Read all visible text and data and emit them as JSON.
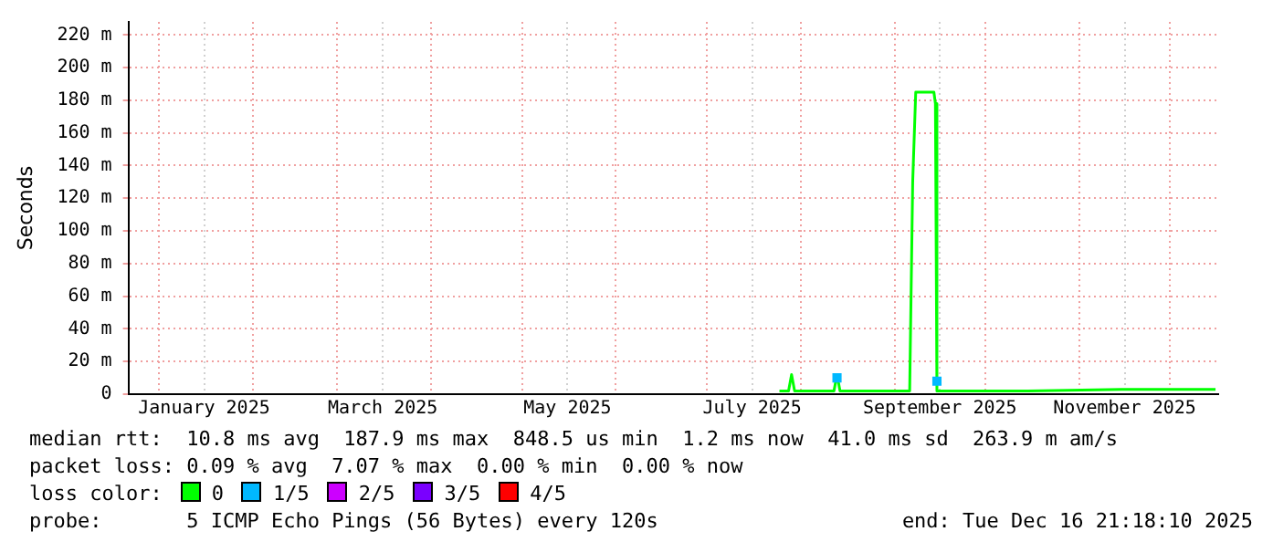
{
  "chart_data": {
    "type": "line",
    "ylabel": "Seconds",
    "legend_title": "loss color:",
    "legend": "bottom",
    "grid": true,
    "xlim": [
      "2024-12-22",
      "2025-12-16T21:18"
    ],
    "xticks": [
      {
        "value": "2025-01-01",
        "label": null
      },
      {
        "value": "2025-01-16",
        "label": "January 2025"
      },
      {
        "value": "2025-02-01",
        "label": null
      },
      {
        "value": "2025-03-01",
        "label": null
      },
      {
        "value": "2025-03-16",
        "label": "March 2025"
      },
      {
        "value": "2025-04-01",
        "label": null
      },
      {
        "value": "2025-05-01",
        "label": null
      },
      {
        "value": "2025-05-16",
        "label": "May 2025"
      },
      {
        "value": "2025-06-01",
        "label": null
      },
      {
        "value": "2025-07-01",
        "label": null
      },
      {
        "value": "2025-07-16",
        "label": "July 2025"
      },
      {
        "value": "2025-08-01",
        "label": null
      },
      {
        "value": "2025-09-01",
        "label": null
      },
      {
        "value": "2025-09-16",
        "label": "September 2025"
      },
      {
        "value": "2025-10-01",
        "label": null
      },
      {
        "value": "2025-11-01",
        "label": null
      },
      {
        "value": "2025-11-16",
        "label": "November 2025"
      },
      {
        "value": "2025-12-01",
        "label": null
      }
    ],
    "ylim": [
      0,
      228
    ],
    "yticks": [
      0,
      {
        "value": 20,
        "label": "20 m"
      },
      {
        "value": 40,
        "label": "40 m"
      },
      {
        "value": 60,
        "label": "60 m"
      },
      {
        "value": 80,
        "label": "80 m"
      },
      {
        "value": 100,
        "label": "100 m"
      },
      {
        "value": 120,
        "label": "120 m"
      },
      {
        "value": 140,
        "label": "140 m"
      },
      {
        "value": 160,
        "label": "160 m"
      },
      {
        "value": 180,
        "label": "180 m"
      },
      {
        "value": 200,
        "label": "200 m"
      },
      {
        "value": 220,
        "label": "220 m"
      }
    ],
    "series": [
      {
        "name": "0",
        "color": "#00ff00",
        "x": [
          "2025-07-25",
          "2025-07-28",
          "2025-07-29",
          "2025-07-30",
          "2025-08-12",
          "2025-08-13",
          "2025-08-14",
          "2025-09-06",
          "2025-09-07",
          "2025-09-08",
          "2025-09-14",
          "2025-09-14T12:00",
          "2025-09-15",
          "2025-10-15",
          "2025-11-15",
          "2025-12-16"
        ],
        "values": [
          2,
          2,
          12,
          2,
          2,
          12,
          2,
          2,
          130,
          185,
          185,
          178,
          2,
          2,
          3,
          3
        ]
      },
      {
        "name": "1/5",
        "color": "#00b8ff",
        "type": "scatter",
        "marker": "square",
        "x": [
          "2025-08-13",
          "2025-09-15"
        ],
        "values": [
          10,
          8
        ]
      },
      {
        "name": "2/5",
        "color": "#cc00ff"
      },
      {
        "name": "3/5",
        "color": "#7a00ff"
      },
      {
        "name": "4/5",
        "color": "#ff0000"
      }
    ],
    "annotations": [
      "median rtt:  10.8 ms avg  187.9 ms max  848.5 us min  1.2 ms now  41.0 ms sd  263.9 m am/s",
      "packet loss: 0.09 % avg  7.07 % max  0.00 % min  0.00 % now",
      "probe:       5 ICMP Echo Pings (56 Bytes) every 120s",
      "end: Tue Dec 16 21:18:10 2025"
    ]
  }
}
